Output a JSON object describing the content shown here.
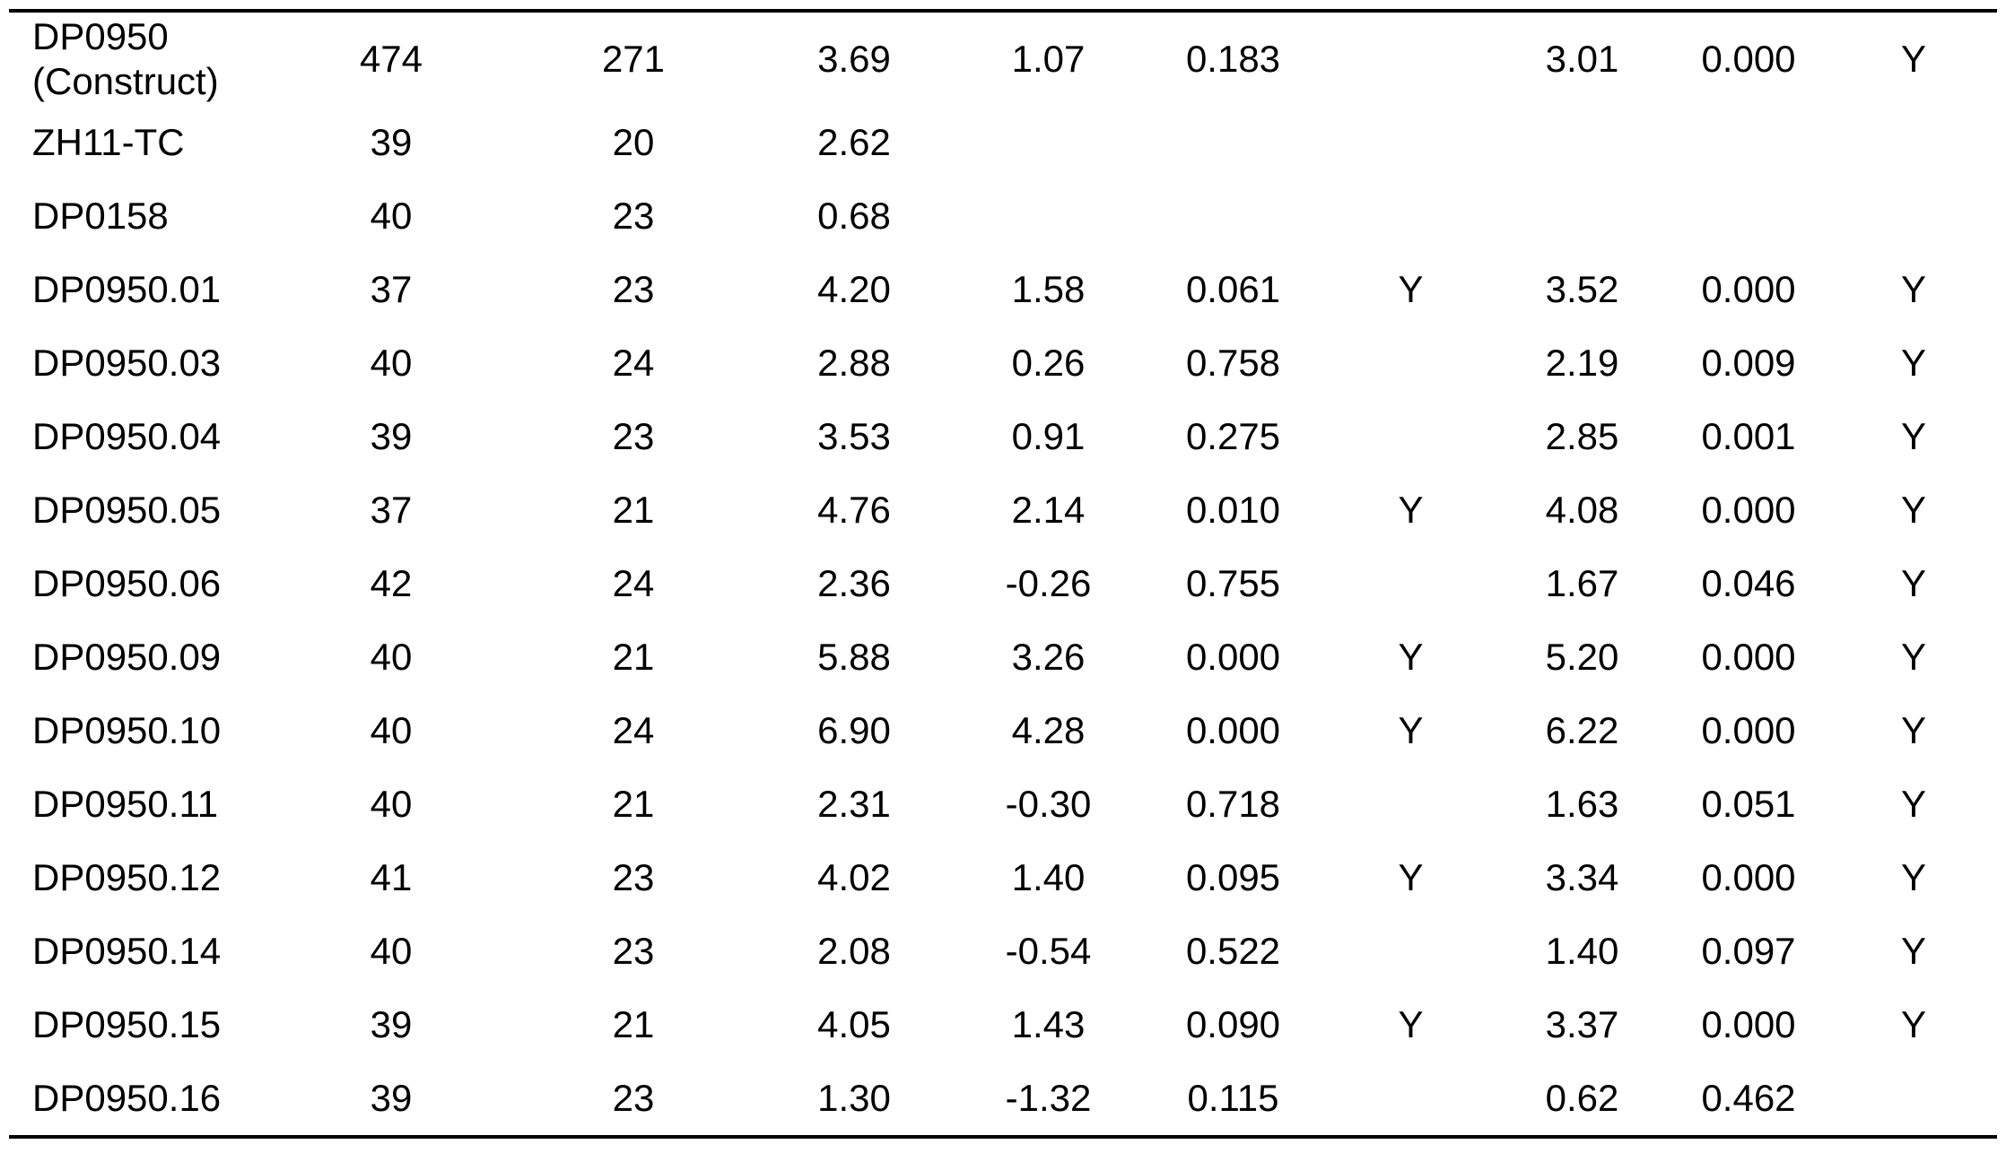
{
  "table": {
    "background": "#ffffff",
    "text_color": "#000000",
    "rule_color": "#000000",
    "flag_value": "Y",
    "rows": [
      {
        "label": "DP0950 (Construct)",
        "values": [
          "474",
          "271",
          "3.69",
          "1.07",
          "0.183",
          "",
          "3.01",
          "0.000",
          "Y"
        ]
      },
      {
        "label": "ZH11-TC",
        "values": [
          "39",
          "20",
          "2.62",
          "",
          "",
          "",
          "",
          "",
          ""
        ]
      },
      {
        "label": "DP0158",
        "values": [
          "40",
          "23",
          "0.68",
          "",
          "",
          "",
          "",
          "",
          ""
        ]
      },
      {
        "label": "DP0950.01",
        "values": [
          "37",
          "23",
          "4.20",
          "1.58",
          "0.061",
          "Y",
          "3.52",
          "0.000",
          "Y"
        ]
      },
      {
        "label": "DP0950.03",
        "values": [
          "40",
          "24",
          "2.88",
          "0.26",
          "0.758",
          "",
          "2.19",
          "0.009",
          "Y"
        ]
      },
      {
        "label": "DP0950.04",
        "values": [
          "39",
          "23",
          "3.53",
          "0.91",
          "0.275",
          "",
          "2.85",
          "0.001",
          "Y"
        ]
      },
      {
        "label": "DP0950.05",
        "values": [
          "37",
          "21",
          "4.76",
          "2.14",
          "0.010",
          "Y",
          "4.08",
          "0.000",
          "Y"
        ]
      },
      {
        "label": "DP0950.06",
        "values": [
          "42",
          "24",
          "2.36",
          "-0.26",
          "0.755",
          "",
          "1.67",
          "0.046",
          "Y"
        ]
      },
      {
        "label": "DP0950.09",
        "values": [
          "40",
          "21",
          "5.88",
          "3.26",
          "0.000",
          "Y",
          "5.20",
          "0.000",
          "Y"
        ]
      },
      {
        "label": "DP0950.10",
        "values": [
          "40",
          "24",
          "6.90",
          "4.28",
          "0.000",
          "Y",
          "6.22",
          "0.000",
          "Y"
        ]
      },
      {
        "label": "DP0950.11",
        "values": [
          "40",
          "21",
          "2.31",
          "-0.30",
          "0.718",
          "",
          "1.63",
          "0.051",
          "Y"
        ]
      },
      {
        "label": "DP0950.12",
        "values": [
          "41",
          "23",
          "4.02",
          "1.40",
          "0.095",
          "Y",
          "3.34",
          "0.000",
          "Y"
        ]
      },
      {
        "label": "DP0950.14",
        "values": [
          "40",
          "23",
          "2.08",
          "-0.54",
          "0.522",
          "",
          "1.40",
          "0.097",
          "Y"
        ]
      },
      {
        "label": "DP0950.15",
        "values": [
          "39",
          "21",
          "4.05",
          "1.43",
          "0.090",
          "Y",
          "3.37",
          "0.000",
          "Y"
        ]
      },
      {
        "label": "DP0950.16",
        "values": [
          "39",
          "23",
          "1.30",
          "-1.32",
          "0.115",
          "",
          "0.62",
          "0.462",
          ""
        ]
      }
    ]
  }
}
